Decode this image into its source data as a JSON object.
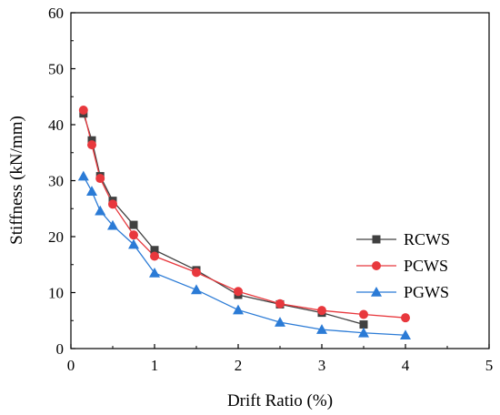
{
  "chart_data": {
    "type": "line",
    "title": "",
    "xlabel": "Drift Ratio (%)",
    "ylabel": "Stiffness (kN/mm)",
    "xlim": [
      0,
      5
    ],
    "ylim": [
      0,
      60
    ],
    "xticks": [
      0,
      1,
      2,
      3,
      4,
      5
    ],
    "yticks": [
      0,
      10,
      20,
      30,
      40,
      50,
      60
    ],
    "grid": false,
    "legend_position": "right-middle",
    "series": [
      {
        "name": "RCWS",
        "color": "#404040",
        "marker": "square",
        "x": [
          0.15,
          0.25,
          0.35,
          0.5,
          0.75,
          1.0,
          1.5,
          2.0,
          2.5,
          3.0,
          3.5
        ],
        "y": [
          42.0,
          37.2,
          30.8,
          26.4,
          22.1,
          17.6,
          14.0,
          9.6,
          7.9,
          6.4,
          4.3
        ]
      },
      {
        "name": "PCWS",
        "color": "#e8383d",
        "marker": "circle",
        "x": [
          0.15,
          0.25,
          0.35,
          0.5,
          0.75,
          1.0,
          1.5,
          2.0,
          2.5,
          3.0,
          3.5,
          4.0
        ],
        "y": [
          42.6,
          36.4,
          30.4,
          25.8,
          20.3,
          16.5,
          13.6,
          10.2,
          8.0,
          6.8,
          6.1,
          5.5
        ]
      },
      {
        "name": "PGWS",
        "color": "#2b7bd6",
        "marker": "triangle",
        "x": [
          0.15,
          0.25,
          0.35,
          0.5,
          0.75,
          1.0,
          1.5,
          2.0,
          2.5,
          3.0,
          3.5,
          4.0
        ],
        "y": [
          30.8,
          28.1,
          24.6,
          22.0,
          18.6,
          13.5,
          10.5,
          6.9,
          4.7,
          3.4,
          2.8,
          2.4
        ]
      }
    ]
  }
}
